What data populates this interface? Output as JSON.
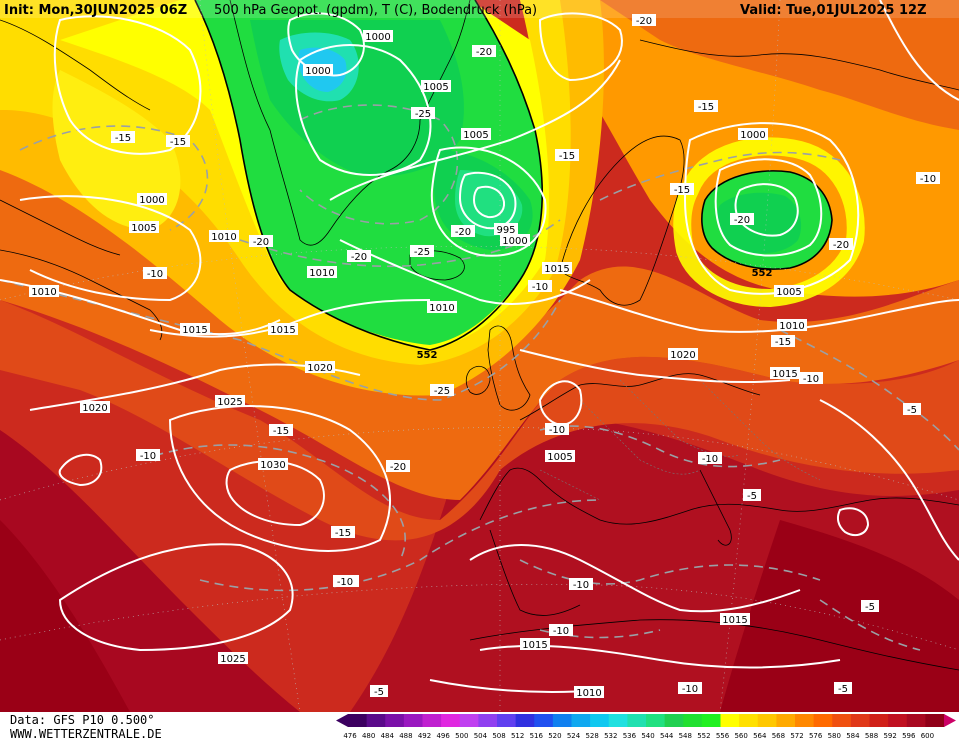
{
  "header": {
    "init": "Init: Mon,30JUN2025 06Z",
    "title": "500 hPa Geopot. (gpdm), T (C), Bodendruck (hPa)",
    "valid": "Valid: Tue,01JUL2025 12Z"
  },
  "footer": {
    "data_source": "Data: GFS P10 0.500°",
    "website": "WWW.WETTERZENTRALE.DE"
  },
  "colors": {
    "deep_green": "#00cc33",
    "green": "#22dd44",
    "cyan": "#33ddcc",
    "light_blue": "#44ccee",
    "yellow": "#ffff00",
    "yellow_orange": "#ffdd00",
    "light_orange": "#ffbb00",
    "orange": "#ff9900",
    "dark_orange": "#ee6a10",
    "orange_red": "#e04a18",
    "red": "#cc2a1e",
    "dark_red": "#b01020",
    "darkest_red": "#9a0016"
  },
  "scale": {
    "ticks": [
      "476",
      "480",
      "484",
      "488",
      "492",
      "496",
      "500",
      "504",
      "508",
      "512",
      "516",
      "520",
      "524",
      "528",
      "532",
      "536",
      "540",
      "544",
      "548",
      "552",
      "556",
      "560",
      "564",
      "568",
      "572",
      "576",
      "580",
      "584",
      "588",
      "592",
      "596",
      "600"
    ],
    "colors": [
      "#3c0060",
      "#5a0a8a",
      "#7a10a8",
      "#9a18c0",
      "#c020d0",
      "#e028e0",
      "#c040f0",
      "#9040f0",
      "#6040f0",
      "#3030e0",
      "#2050f0",
      "#1080f0",
      "#10a8f0",
      "#10c8f0",
      "#20e0e0",
      "#20e0b0",
      "#20e080",
      "#20d050",
      "#20e030",
      "#20f020",
      "#ffff00",
      "#ffe000",
      "#ffc800",
      "#ffaa00",
      "#ff8800",
      "#ff6a00",
      "#f05010",
      "#e03818",
      "#d02018",
      "#c01020",
      "#a80820",
      "#900018"
    ]
  },
  "pressure_labels": [
    "1000",
    "1000",
    "1005",
    "1005",
    "1000",
    "995",
    "1000",
    "1000",
    "1005",
    "1010",
    "1010",
    "1015",
    "1005",
    "1010",
    "1015",
    "1015",
    "1010",
    "1020",
    "1020",
    "1020",
    "1025",
    "1015",
    "1030",
    "1025",
    "1015",
    "1015",
    "1010",
    "1010",
    "1005",
    "1015",
    "1000"
  ],
  "temperature_labels": [
    "-15",
    "-15",
    "-25",
    "-20",
    "-25",
    "-20",
    "-20",
    "-20",
    "-15",
    "-15",
    "-15",
    "-20",
    "-20",
    "-10",
    "-10",
    "-25",
    "-15",
    "-10",
    "-10",
    "-10",
    "-15",
    "-10",
    "-10",
    "-10",
    "-5",
    "-5",
    "-5",
    "-5",
    "-5",
    "-10",
    "-20",
    "-15",
    "-10",
    "-20",
    "-10",
    "-10"
  ],
  "geopotential_labels": [
    "552",
    "552"
  ]
}
